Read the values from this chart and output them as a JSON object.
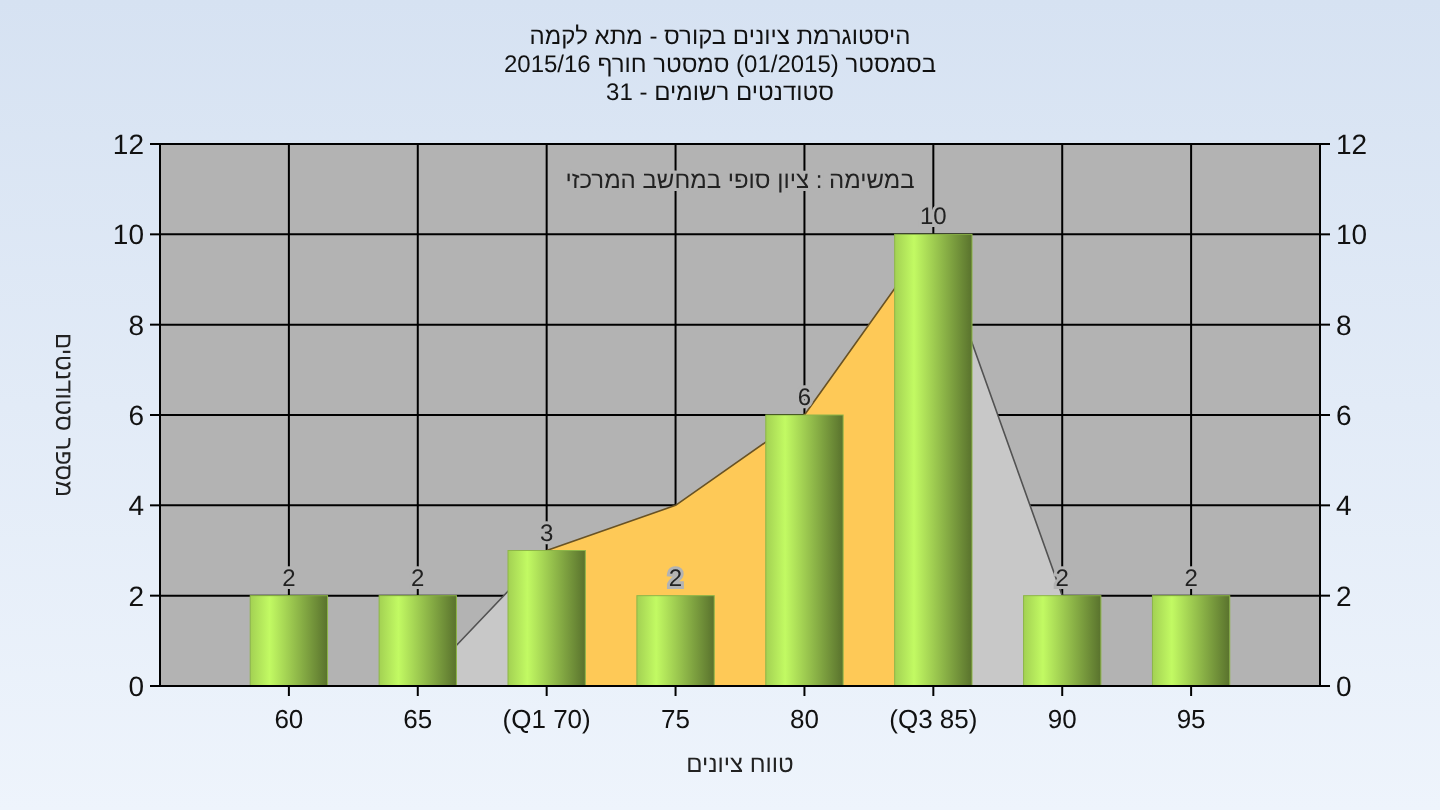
{
  "chart_data": {
    "type": "bar",
    "title": "היסטוגרמת ציונים בקורס - מתא לקמה",
    "subtitle": "בסמסטר  (01/2015)  סמסטר חורף 2015/16\nסטודנטים רשומים - 31",
    "xlabel": "טווח ציונים",
    "ylabel": "מספר סטודנטים",
    "annotations": [
      "במשימה : ציון סופי במחשב המרכזי"
    ],
    "categories": [
      "60",
      "65",
      "(Q1 70)",
      "75",
      "80",
      "(Q3 85)",
      "90",
      "95"
    ],
    "series": [
      {
        "type": "area",
        "color": "#c8c8c8",
        "values": [
          null,
          0,
          3,
          null,
          null,
          10,
          2,
          null
        ]
      },
      {
        "type": "area",
        "color": "#fec957",
        "values": [
          null,
          null,
          3,
          4,
          6,
          10,
          null,
          null
        ]
      },
      {
        "color": "#8db548",
        "values": [
          2,
          2,
          3,
          2,
          6,
          10,
          2,
          2
        ],
        "value_labels": [
          "2",
          "2",
          "3",
          "2",
          "6",
          "10",
          "2",
          "2"
        ]
      }
    ],
    "ylim": [
      0,
      12
    ],
    "yticks": [
      0,
      2,
      4,
      6,
      8,
      10,
      12
    ],
    "y2lim": [
      0,
      12
    ],
    "y2ticks": [
      0,
      2,
      4,
      6,
      8,
      10,
      12
    ],
    "grid": true
  }
}
